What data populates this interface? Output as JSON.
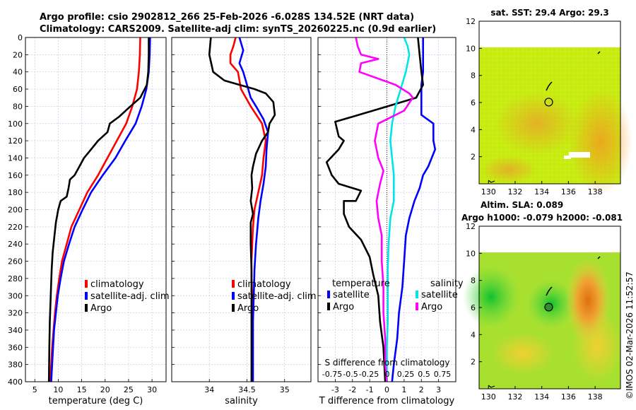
{
  "title_line1": "Argo profile: csio 2902812_266 25-Feb-2026 -6.028S 134.52E (NRT data)",
  "title_line2": "Climatology: CARS2009. Satellite-adj clim: synTS_20260225.nc (0.9d earlier)",
  "side_label": "©IMOS 02-Mar-2026 11:52:57",
  "colors": {
    "climatology": "#ff0000",
    "satellite": "#0000ff",
    "argo": "#000000",
    "sat_salinity": "#00e5e5",
    "salinity_diff": "#ff00ff"
  },
  "chart_data": [
    {
      "type": "line",
      "id": "temperature",
      "xlabel": "temperature (deg C)",
      "ylabel": "",
      "xlim": [
        3,
        33
      ],
      "ylim": [
        400,
        0
      ],
      "xticks": [
        "5",
        "10",
        "15",
        "20",
        "25",
        "30"
      ],
      "yticks": [
        "0",
        "20",
        "40",
        "60",
        "80",
        "100",
        "120",
        "140",
        "160",
        "180",
        "200",
        "220",
        "240",
        "260",
        "280",
        "300",
        "320",
        "340",
        "360",
        "380",
        "400"
      ],
      "legend": {
        "position": "lower-right",
        "entries": [
          "climatology",
          "satellite-adj. clim",
          "Argo"
        ]
      },
      "series": [
        {
          "name": "climatology",
          "color": "#ff0000",
          "points": [
            [
              27.5,
              0
            ],
            [
              27.4,
              20
            ],
            [
              27.2,
              40
            ],
            [
              26.8,
              60
            ],
            [
              25.8,
              80
            ],
            [
              24.5,
              100
            ],
            [
              22.5,
              120
            ],
            [
              20.5,
              140
            ],
            [
              18.5,
              160
            ],
            [
              16.2,
              180
            ],
            [
              14.5,
              200
            ],
            [
              12.8,
              220
            ],
            [
              11.8,
              240
            ],
            [
              10.8,
              260
            ],
            [
              10.2,
              280
            ],
            [
              9.7,
              300
            ],
            [
              9.3,
              320
            ],
            [
              9.0,
              340
            ],
            [
              8.7,
              360
            ],
            [
              8.5,
              380
            ],
            [
              8.3,
              400
            ]
          ]
        },
        {
          "name": "satellite-adj. clim",
          "color": "#0000ff",
          "points": [
            [
              29.6,
              0
            ],
            [
              29.5,
              20
            ],
            [
              29.3,
              40
            ],
            [
              28.8,
              60
            ],
            [
              27.8,
              80
            ],
            [
              26.5,
              100
            ],
            [
              24.3,
              120
            ],
            [
              22.2,
              140
            ],
            [
              19.5,
              160
            ],
            [
              17.0,
              180
            ],
            [
              15.2,
              200
            ],
            [
              13.5,
              220
            ],
            [
              12.3,
              240
            ],
            [
              11.2,
              260
            ],
            [
              10.5,
              280
            ],
            [
              9.9,
              300
            ],
            [
              9.5,
              320
            ],
            [
              9.1,
              340
            ],
            [
              8.9,
              360
            ],
            [
              8.7,
              380
            ],
            [
              8.5,
              400
            ]
          ]
        },
        {
          "name": "Argo",
          "color": "#000000",
          "points": [
            [
              29.3,
              0
            ],
            [
              29.3,
              20
            ],
            [
              29.2,
              40
            ],
            [
              28.9,
              55
            ],
            [
              27.5,
              70
            ],
            [
              25.0,
              82
            ],
            [
              23.0,
              92
            ],
            [
              21.0,
              100
            ],
            [
              20.5,
              110
            ],
            [
              18.5,
              120
            ],
            [
              17.0,
              130
            ],
            [
              15.5,
              140
            ],
            [
              14.5,
              150
            ],
            [
              13.5,
              160
            ],
            [
              12.5,
              165
            ],
            [
              12.2,
              175
            ],
            [
              11.8,
              185
            ],
            [
              10.5,
              190
            ],
            [
              10.0,
              200
            ],
            [
              9.5,
              215
            ],
            [
              9.2,
              230
            ],
            [
              8.8,
              250
            ],
            [
              8.6,
              270
            ],
            [
              8.4,
              300
            ],
            [
              8.2,
              330
            ],
            [
              8.1,
              360
            ],
            [
              8.0,
              400
            ]
          ]
        }
      ]
    },
    {
      "type": "line",
      "id": "salinity",
      "xlabel": "salinity",
      "ylabel": "",
      "xlim": [
        33.5,
        35.35
      ],
      "ylim": [
        400,
        0
      ],
      "xticks": [
        "34",
        "34.5",
        "35"
      ],
      "legend": {
        "position": "lower-right",
        "entries": [
          "climatology",
          "satellite-adj. clim",
          "Argo"
        ]
      },
      "series": [
        {
          "name": "climatology",
          "color": "#ff0000",
          "points": [
            [
              34.35,
              0
            ],
            [
              34.32,
              10
            ],
            [
              34.28,
              20
            ],
            [
              34.28,
              30
            ],
            [
              34.38,
              40
            ],
            [
              34.42,
              60
            ],
            [
              34.55,
              80
            ],
            [
              34.7,
              100
            ],
            [
              34.75,
              120
            ],
            [
              34.72,
              140
            ],
            [
              34.7,
              160
            ],
            [
              34.65,
              180
            ],
            [
              34.6,
              200
            ],
            [
              34.58,
              220
            ],
            [
              34.57,
              240
            ],
            [
              34.56,
              260
            ],
            [
              34.56,
              280
            ],
            [
              34.57,
              300
            ],
            [
              34.57,
              330
            ],
            [
              34.57,
              360
            ],
            [
              34.57,
              400
            ]
          ]
        },
        {
          "name": "satellite-adj. clim",
          "color": "#0000ff",
          "points": [
            [
              34.4,
              0
            ],
            [
              34.45,
              15
            ],
            [
              34.4,
              30
            ],
            [
              34.45,
              40
            ],
            [
              34.5,
              55
            ],
            [
              34.55,
              70
            ],
            [
              34.62,
              80
            ],
            [
              34.72,
              95
            ],
            [
              34.78,
              110
            ],
            [
              34.76,
              130
            ],
            [
              34.75,
              150
            ],
            [
              34.72,
              170
            ],
            [
              34.68,
              190
            ],
            [
              34.65,
              210
            ],
            [
              34.62,
              240
            ],
            [
              34.6,
              270
            ],
            [
              34.59,
              300
            ],
            [
              34.58,
              330
            ],
            [
              34.58,
              360
            ],
            [
              34.58,
              400
            ]
          ]
        },
        {
          "name": "Argo",
          "color": "#000000",
          "points": [
            [
              34.02,
              0
            ],
            [
              34.0,
              20
            ],
            [
              34.05,
              40
            ],
            [
              34.2,
              50
            ],
            [
              34.4,
              55
            ],
            [
              34.6,
              60
            ],
            [
              34.75,
              65
            ],
            [
              34.85,
              75
            ],
            [
              34.87,
              90
            ],
            [
              34.8,
              100
            ],
            [
              34.78,
              110
            ],
            [
              34.7,
              120
            ],
            [
              34.62,
              135
            ],
            [
              34.58,
              150
            ],
            [
              34.56,
              160
            ],
            [
              34.57,
              175
            ],
            [
              34.55,
              190
            ],
            [
              34.58,
              205
            ],
            [
              34.55,
              215
            ],
            [
              34.55,
              240
            ],
            [
              34.56,
              270
            ],
            [
              34.56,
              300
            ],
            [
              34.56,
              330
            ],
            [
              34.56,
              360
            ],
            [
              34.56,
              400
            ]
          ]
        }
      ]
    },
    {
      "type": "line",
      "id": "differences",
      "xlabel": "T difference from climatology",
      "xlim": [
        -4,
        4
      ],
      "ylim": [
        400,
        0
      ],
      "xticks": [
        "-3",
        "-2",
        "-1",
        "0",
        "1",
        "2",
        "3"
      ],
      "top_axis": {
        "label": "S difference from climatology",
        "ticks": [
          "-0.75",
          "-0.5",
          "-0.25",
          "0",
          "0.25",
          "0.5",
          "0.75"
        ]
      },
      "legend": {
        "position": "lower",
        "entries": [
          "temperature",
          "satellite",
          "Argo",
          "salinity",
          "satellite",
          "Argo"
        ]
      },
      "series": [
        {
          "name": "temperature satellite",
          "color": "#0000ff",
          "points": [
            [
              2.1,
              0
            ],
            [
              2.1,
              20
            ],
            [
              2.1,
              40
            ],
            [
              2.0,
              55
            ],
            [
              2.0,
              70
            ],
            [
              2.0,
              80
            ],
            [
              2.0,
              90
            ],
            [
              2.7,
              100
            ],
            [
              2.7,
              120
            ],
            [
              2.8,
              130
            ],
            [
              2.6,
              140
            ],
            [
              2.4,
              150
            ],
            [
              2.1,
              160
            ],
            [
              1.9,
              175
            ],
            [
              1.6,
              190
            ],
            [
              1.3,
              210
            ],
            [
              1.1,
              230
            ],
            [
              1.0,
              260
            ],
            [
              0.9,
              290
            ],
            [
              0.7,
              320
            ],
            [
              0.6,
              350
            ],
            [
              0.4,
              380
            ],
            [
              0.3,
              400
            ]
          ]
        },
        {
          "name": "temperature Argo",
          "color": "#000000",
          "points": [
            [
              1.8,
              0
            ],
            [
              1.9,
              20
            ],
            [
              2.0,
              40
            ],
            [
              2.1,
              55
            ],
            [
              1.7,
              70
            ],
            [
              -0.8,
              85
            ],
            [
              -3.0,
              98
            ],
            [
              -2.8,
              115
            ],
            [
              -2.5,
              120
            ],
            [
              -2.8,
              130
            ],
            [
              -3.5,
              145
            ],
            [
              -3.2,
              160
            ],
            [
              -2.8,
              170
            ],
            [
              -1.5,
              178
            ],
            [
              -1.8,
              190
            ],
            [
              -2.5,
              190
            ],
            [
              -2.5,
              205
            ],
            [
              -2.2,
              220
            ],
            [
              -1.5,
              235
            ],
            [
              -1.0,
              255
            ],
            [
              -0.8,
              275
            ],
            [
              -0.5,
              300
            ],
            [
              -0.4,
              330
            ],
            [
              -0.2,
              360
            ],
            [
              -0.1,
              400
            ]
          ]
        },
        {
          "name": "salinity satellite",
          "color": "#00e5e5",
          "points": [
            [
              1.0,
              0
            ],
            [
              1.2,
              10
            ],
            [
              1.3,
              20
            ],
            [
              1.1,
              40
            ],
            [
              0.8,
              60
            ],
            [
              0.5,
              80
            ],
            [
              0.3,
              100
            ],
            [
              0.2,
              120
            ],
            [
              0.3,
              140
            ],
            [
              0.4,
              160
            ],
            [
              0.4,
              190
            ],
            [
              0.2,
              210
            ],
            [
              0.1,
              240
            ],
            [
              0.05,
              270
            ],
            [
              0.05,
              300
            ],
            [
              0.05,
              330
            ],
            [
              0.0,
              360
            ],
            [
              0.0,
              400
            ]
          ]
        },
        {
          "name": "salinity Argo",
          "color": "#ff00ff",
          "points": [
            [
              -1.8,
              0
            ],
            [
              -1.7,
              10
            ],
            [
              -1.5,
              20
            ],
            [
              -0.5,
              25
            ],
            [
              -1.5,
              30
            ],
            [
              -1.6,
              40
            ],
            [
              0.5,
              55
            ],
            [
              1.3,
              65
            ],
            [
              1.5,
              70
            ],
            [
              1.0,
              85
            ],
            [
              -0.5,
              100
            ],
            [
              -0.7,
              120
            ],
            [
              -0.5,
              140
            ],
            [
              -0.2,
              155
            ],
            [
              -0.4,
              170
            ],
            [
              -0.6,
              190
            ],
            [
              -0.5,
              210
            ],
            [
              -0.3,
              230
            ],
            [
              -0.3,
              260
            ],
            [
              -0.2,
              290
            ],
            [
              -0.2,
              320
            ],
            [
              -0.1,
              350
            ],
            [
              -0.1,
              380
            ],
            [
              0.0,
              400
            ]
          ]
        }
      ]
    },
    {
      "type": "heatmap",
      "id": "sst_map",
      "title": "sat. SST: 29.4 Argo: 29.3",
      "xlim": [
        129.3,
        139.9
      ],
      "ylim": [
        0,
        12
      ],
      "xticks": [
        "130",
        "132",
        "134",
        "136",
        "138"
      ],
      "yticks": [
        "2",
        "4",
        "6",
        "8",
        "10",
        "12"
      ],
      "marker": {
        "lon": 134.52,
        "lat": 6.03
      }
    },
    {
      "type": "heatmap",
      "id": "sla_map",
      "title_line1": "Altim. SLA: 0.089",
      "title_line2": "Argo h1000: -0.079 h2000: -0.081",
      "xlim": [
        129.3,
        139.9
      ],
      "ylim": [
        0,
        12
      ],
      "xticks": [
        "130",
        "132",
        "134",
        "136",
        "138"
      ],
      "yticks": [
        "2",
        "4",
        "6",
        "8",
        "10",
        "12"
      ],
      "marker": {
        "lon": 134.52,
        "lat": 6.03
      }
    }
  ]
}
